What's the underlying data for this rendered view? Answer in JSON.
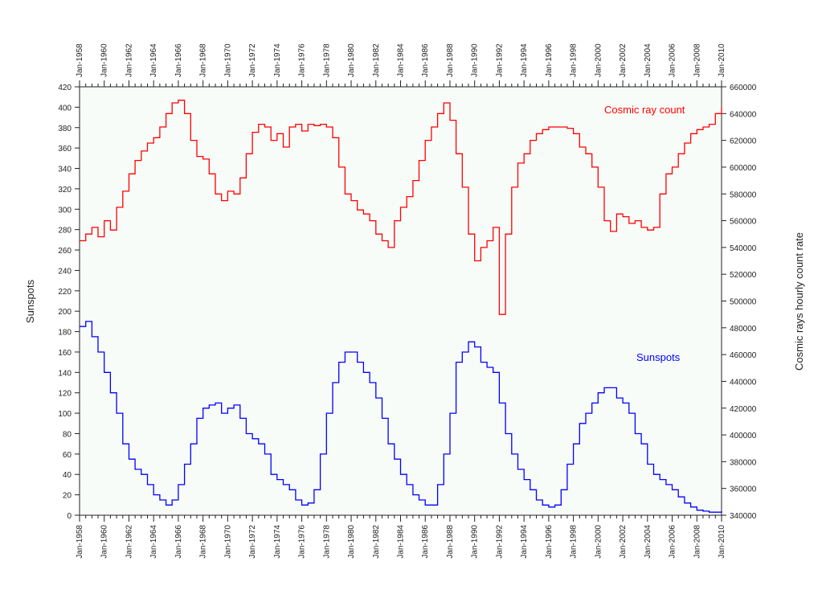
{
  "chart_data": {
    "type": "line",
    "x_start": "Jan-1958",
    "x_end": "Jan-2010",
    "x_tick_labels": [
      "Jan-1958",
      "Jan-1960",
      "Jan-1962",
      "Jan-1964",
      "Jan-1966",
      "Jan-1968",
      "Jan-1970",
      "Jan-1972",
      "Jan-1974",
      "Jan-1976",
      "Jan-1978",
      "Jan-1980",
      "Jan-1982",
      "Jan-1984",
      "Jan-1986",
      "Jan-1988",
      "Jan-1990",
      "Jan-1992",
      "Jan-1994",
      "Jan-1996",
      "Jan-1998",
      "Jan-2000",
      "Jan-2002",
      "Jan-2004",
      "Jan-2006",
      "Jan-2008",
      "Jan-2010"
    ],
    "ylabel_left": "Sunspots",
    "ylabel_right": "Cosmic rays hourly count rate",
    "ylim_left": [
      0,
      420
    ],
    "ylim_right": [
      340000,
      660000
    ],
    "left_ticks": [
      "0",
      "20",
      "40",
      "60",
      "80",
      "100",
      "120",
      "140",
      "160",
      "180",
      "200",
      "220",
      "240",
      "260",
      "280",
      "300",
      "320",
      "340",
      "360",
      "380",
      "400",
      "420"
    ],
    "right_ticks": [
      "340000",
      "360000",
      "380000",
      "400000",
      "420000",
      "440000",
      "460000",
      "480000",
      "500000",
      "520000",
      "540000",
      "560000",
      "580000",
      "600000",
      "620000",
      "640000",
      "660000"
    ],
    "grid": false,
    "background": "#f8fcf8",
    "series": [
      {
        "name": "Cosmic ray count",
        "axis": "right",
        "color": "#ff0000",
        "x": [
          1958,
          1958.5,
          1959,
          1959.5,
          1960,
          1960.5,
          1961,
          1961.5,
          1962,
          1962.5,
          1963,
          1963.5,
          1964,
          1964.5,
          1965,
          1965.5,
          1966,
          1966.5,
          1967,
          1967.5,
          1968,
          1968.5,
          1969,
          1969.5,
          1970,
          1970.5,
          1971,
          1971.5,
          1972,
          1972.5,
          1973,
          1973.5,
          1974,
          1974.5,
          1975,
          1975.5,
          1976,
          1976.5,
          1977,
          1977.5,
          1978,
          1978.5,
          1979,
          1979.5,
          1980,
          1980.5,
          1981,
          1981.5,
          1982,
          1982.5,
          1983,
          1983.5,
          1984,
          1984.5,
          1985,
          1985.5,
          1986,
          1986.5,
          1987,
          1987.5,
          1988,
          1988.5,
          1989,
          1989.5,
          1990,
          1990.5,
          1991,
          1991.5,
          1992,
          1992.5,
          1993,
          1993.5,
          1994,
          1994.5,
          1995,
          1995.5,
          1996,
          1996.5,
          1997,
          1997.5,
          1998,
          1998.5,
          1999,
          1999.5,
          2000,
          2000.5,
          2001,
          2001.5,
          2002,
          2002.5,
          2003,
          2003.5,
          2004,
          2004.5,
          2005,
          2005.5,
          2006,
          2006.5,
          2007,
          2007.5,
          2008,
          2008.5,
          2009,
          2009.5,
          2010
        ],
        "values": [
          545000,
          550000,
          555000,
          548000,
          560000,
          553000,
          570000,
          582000,
          595000,
          605000,
          612000,
          618000,
          622000,
          630000,
          640000,
          648000,
          650000,
          640000,
          620000,
          608000,
          606000,
          595000,
          580000,
          575000,
          582000,
          580000,
          592000,
          610000,
          626000,
          632000,
          630000,
          620000,
          625000,
          615000,
          630000,
          632000,
          627000,
          632000,
          631000,
          632000,
          630000,
          622000,
          600000,
          580000,
          575000,
          568000,
          565000,
          560000,
          550000,
          545000,
          540000,
          560000,
          570000,
          578000,
          590000,
          605000,
          620000,
          630000,
          640000,
          648000,
          635000,
          610000,
          585000,
          550000,
          530000,
          540000,
          545000,
          555000,
          490000,
          550000,
          585000,
          603000,
          610000,
          620000,
          625000,
          628000,
          630000,
          630000,
          630000,
          629000,
          625000,
          615000,
          610000,
          600000,
          585000,
          560000,
          552000,
          565000,
          563000,
          558000,
          560000,
          555000,
          553000,
          555000,
          580000,
          595000,
          600000,
          610000,
          618000,
          625000,
          628000,
          630000,
          632000,
          640000,
          645000
        ]
      },
      {
        "name": "Sunspots",
        "axis": "left",
        "color": "#0000ff",
        "x": [
          1958,
          1958.5,
          1959,
          1959.5,
          1960,
          1960.5,
          1961,
          1961.5,
          1962,
          1962.5,
          1963,
          1963.5,
          1964,
          1964.5,
          1965,
          1965.5,
          1966,
          1966.5,
          1967,
          1967.5,
          1968,
          1968.5,
          1969,
          1969.5,
          1970,
          1970.5,
          1971,
          1971.5,
          1972,
          1972.5,
          1973,
          1973.5,
          1974,
          1974.5,
          1975,
          1975.5,
          1976,
          1976.5,
          1977,
          1977.5,
          1978,
          1978.5,
          1979,
          1979.5,
          1980,
          1980.5,
          1981,
          1981.5,
          1982,
          1982.5,
          1983,
          1983.5,
          1984,
          1984.5,
          1985,
          1985.5,
          1986,
          1986.5,
          1987,
          1987.5,
          1988,
          1988.5,
          1989,
          1989.5,
          1990,
          1990.5,
          1991,
          1991.5,
          1992,
          1992.5,
          1993,
          1993.5,
          1994,
          1994.5,
          1995,
          1995.5,
          1996,
          1996.5,
          1997,
          1997.5,
          1998,
          1998.5,
          1999,
          1999.5,
          2000,
          2000.5,
          2001,
          2001.5,
          2002,
          2002.5,
          2003,
          2003.5,
          2004,
          2004.5,
          2005,
          2005.5,
          2006,
          2006.5,
          2007,
          2007.5,
          2008,
          2008.5,
          2009,
          2009.5,
          2010
        ],
        "values": [
          185,
          190,
          175,
          160,
          140,
          120,
          100,
          70,
          55,
          45,
          40,
          30,
          20,
          15,
          10,
          15,
          30,
          50,
          70,
          95,
          105,
          108,
          110,
          100,
          105,
          108,
          95,
          80,
          75,
          70,
          60,
          40,
          35,
          30,
          25,
          15,
          10,
          12,
          25,
          60,
          100,
          130,
          150,
          160,
          160,
          150,
          140,
          130,
          115,
          95,
          70,
          55,
          40,
          30,
          20,
          15,
          10,
          10,
          30,
          60,
          100,
          150,
          160,
          170,
          165,
          150,
          145,
          140,
          110,
          80,
          60,
          45,
          35,
          25,
          15,
          10,
          8,
          10,
          25,
          50,
          70,
          90,
          100,
          110,
          120,
          125,
          125,
          115,
          110,
          100,
          80,
          70,
          50,
          40,
          35,
          30,
          25,
          18,
          12,
          8,
          5,
          4,
          3,
          3,
          4
        ]
      }
    ]
  }
}
